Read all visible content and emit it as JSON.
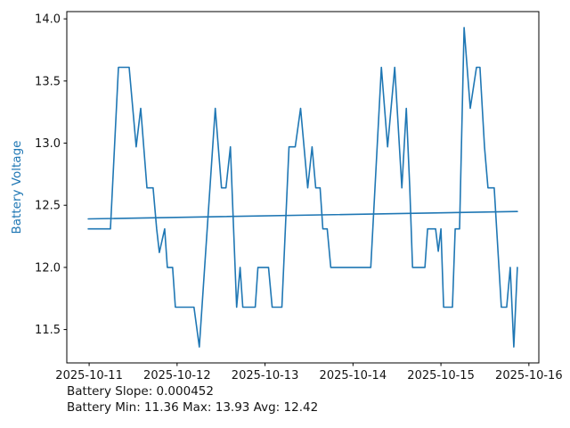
{
  "window": {
    "background": "#ffffff"
  },
  "chart_data": {
    "type": "line",
    "title": "",
    "xlabel": "",
    "ylabel": "Battery Voltage",
    "axis_label_color": "#1f77b4",
    "line_color": "#1f77b4",
    "spine_color": "#000000",
    "tick_label_color": "#141414",
    "grid": false,
    "legend": "none",
    "x_unit_note": "days since 2025-10-11 00:00",
    "xlim": [
      -0.254,
      5.113
    ],
    "ylim": [
      11.2315,
      14.0585
    ],
    "x_ticks": [
      {
        "value": 0,
        "label": "2025-10-11"
      },
      {
        "value": 1,
        "label": "2025-10-12"
      },
      {
        "value": 2,
        "label": "2025-10-13"
      },
      {
        "value": 3,
        "label": "2025-10-14"
      },
      {
        "value": 4,
        "label": "2025-10-15"
      },
      {
        "value": 5,
        "label": "2025-10-16"
      }
    ],
    "y_ticks": [
      {
        "value": 11.5,
        "label": "11.5"
      },
      {
        "value": 12.0,
        "label": "12.0"
      },
      {
        "value": 12.5,
        "label": "12.5"
      },
      {
        "value": 13.0,
        "label": "13.0"
      },
      {
        "value": 13.5,
        "label": "13.5"
      },
      {
        "value": 14.0,
        "label": "14.0"
      }
    ],
    "series": [
      {
        "name": "Battery Voltage",
        "role": "data",
        "points": [
          [
            -0.01,
            12.31
          ],
          [
            0.242,
            12.31
          ],
          [
            0.333,
            13.61
          ],
          [
            0.455,
            13.61
          ],
          [
            0.535,
            12.97
          ],
          [
            0.586,
            13.28
          ],
          [
            0.657,
            12.64
          ],
          [
            0.727,
            12.64
          ],
          [
            0.768,
            12.31
          ],
          [
            0.798,
            12.12
          ],
          [
            0.859,
            12.31
          ],
          [
            0.889,
            12.0
          ],
          [
            0.949,
            12.0
          ],
          [
            0.98,
            11.68
          ],
          [
            1.192,
            11.68
          ],
          [
            1.253,
            11.36
          ],
          [
            1.434,
            13.28
          ],
          [
            1.505,
            12.64
          ],
          [
            1.556,
            12.64
          ],
          [
            1.606,
            12.97
          ],
          [
            1.677,
            11.68
          ],
          [
            1.717,
            12.0
          ],
          [
            1.747,
            11.68
          ],
          [
            1.889,
            11.68
          ],
          [
            1.919,
            12.0
          ],
          [
            2.04,
            12.0
          ],
          [
            2.081,
            11.68
          ],
          [
            2.192,
            11.68
          ],
          [
            2.273,
            12.97
          ],
          [
            2.343,
            12.97
          ],
          [
            2.404,
            13.28
          ],
          [
            2.485,
            12.64
          ],
          [
            2.535,
            12.97
          ],
          [
            2.576,
            12.64
          ],
          [
            2.626,
            12.64
          ],
          [
            2.657,
            12.31
          ],
          [
            2.707,
            12.31
          ],
          [
            2.747,
            12.0
          ],
          [
            3.202,
            12.0
          ],
          [
            3.323,
            13.61
          ],
          [
            3.394,
            12.97
          ],
          [
            3.475,
            13.61
          ],
          [
            3.556,
            12.64
          ],
          [
            3.606,
            13.28
          ],
          [
            3.646,
            12.64
          ],
          [
            3.677,
            12.0
          ],
          [
            3.818,
            12.0
          ],
          [
            3.848,
            12.31
          ],
          [
            3.939,
            12.31
          ],
          [
            3.97,
            12.13
          ],
          [
            4.0,
            12.31
          ],
          [
            4.03,
            11.68
          ],
          [
            4.131,
            11.68
          ],
          [
            4.162,
            12.31
          ],
          [
            4.212,
            12.31
          ],
          [
            4.263,
            13.93
          ],
          [
            4.333,
            13.28
          ],
          [
            4.404,
            13.61
          ],
          [
            4.444,
            13.61
          ],
          [
            4.495,
            12.97
          ],
          [
            4.535,
            12.64
          ],
          [
            4.606,
            12.64
          ],
          [
            4.687,
            11.68
          ],
          [
            4.747,
            11.68
          ],
          [
            4.788,
            12.0
          ],
          [
            4.828,
            11.36
          ],
          [
            4.869,
            12.0
          ]
        ]
      },
      {
        "name": "Trend",
        "role": "trendline",
        "points": [
          [
            -0.01,
            12.39
          ],
          [
            4.869,
            12.45
          ]
        ]
      }
    ],
    "annotations": {
      "slope_line": "Battery Slope: 0.000452",
      "stats_line": "Battery Min: 11.36 Max: 13.93 Avg: 12.42"
    },
    "stats": {
      "slope": 0.000452,
      "min": 11.36,
      "max": 13.93,
      "avg": 12.42
    }
  }
}
